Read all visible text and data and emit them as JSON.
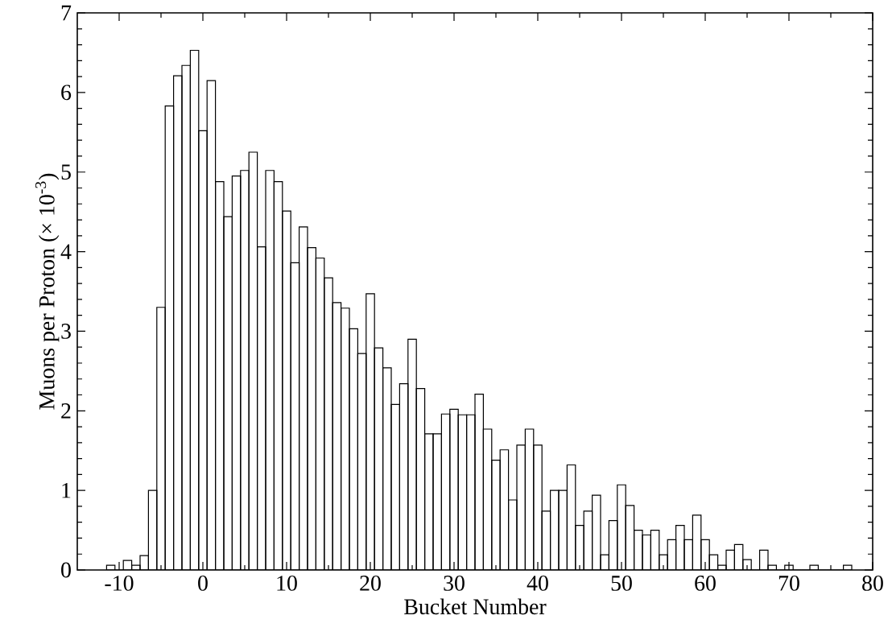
{
  "chart_data": {
    "type": "histogram",
    "xlabel": "Bucket Number",
    "ylabel": "Muons per Proton (× 10$^{-3}$)",
    "bins": [
      -11.5,
      -10.5,
      -9.5,
      -8.5,
      -7.5,
      -6.5,
      -5.5,
      -4.5,
      -3.5,
      -2.5,
      -1.5,
      -0.5,
      0.5,
      1.5,
      2.5,
      3.5,
      4.5,
      5.5,
      6.5,
      7.5,
      8.5,
      9.5,
      10.5,
      11.5,
      12.5,
      13.5,
      14.5,
      15.5,
      16.5,
      17.5,
      18.5,
      19.5,
      20.5,
      21.5,
      22.5,
      23.5,
      24.5,
      25.5,
      26.5,
      27.5,
      28.5,
      29.5,
      30.5,
      31.5,
      32.5,
      33.5,
      34.5,
      35.5,
      36.5,
      37.5,
      38.5,
      39.5,
      40.5,
      41.5,
      42.5,
      43.5,
      44.5,
      45.5,
      46.5,
      47.5,
      48.5,
      49.5,
      50.5,
      51.5,
      52.5,
      53.5,
      54.5,
      55.5,
      56.5,
      57.5,
      58.5,
      59.5,
      60.5,
      61.5,
      62.5,
      63.5,
      64.5,
      65.5,
      66.5,
      67.5,
      68.5,
      69.5,
      70.5,
      71.5,
      72.5,
      73.5,
      74.5,
      75.5,
      76.5,
      77.5
    ],
    "values": [
      0.06,
      0,
      0.12,
      0.06,
      0.18,
      1.0,
      3.3,
      5.83,
      6.21,
      6.34,
      6.53,
      5.52,
      6.15,
      4.88,
      4.44,
      4.95,
      5.02,
      5.25,
      4.06,
      5.02,
      4.88,
      4.51,
      3.86,
      4.31,
      4.05,
      3.92,
      3.67,
      3.36,
      3.29,
      3.03,
      2.72,
      3.47,
      2.79,
      2.54,
      2.08,
      2.34,
      2.9,
      2.28,
      1.71,
      1.71,
      1.96,
      2.02,
      1.95,
      1.95,
      2.21,
      1.77,
      1.38,
      1.51,
      0.88,
      1.57,
      1.77,
      1.57,
      0.74,
      1.0,
      1.0,
      1.32,
      0.56,
      0.74,
      0.94,
      0.19,
      0.62,
      1.07,
      0.81,
      0.5,
      0.44,
      0.5,
      0.19,
      0.38,
      0.56,
      0.38,
      0.69,
      0.38,
      0.19,
      0.06,
      0.25,
      0.32,
      0.13,
      0,
      0.25,
      0.06,
      0,
      0.06,
      0,
      0,
      0.06,
      0,
      0,
      0,
      0.06
    ],
    "color": "#000000",
    "xlim": [
      -15,
      80
    ],
    "xticks": [
      -10,
      0,
      10,
      20,
      30,
      40,
      50,
      60,
      70,
      80
    ],
    "ylim": [
      0,
      7
    ],
    "yticks": [
      0,
      1,
      2,
      3,
      4,
      5,
      6,
      7
    ]
  }
}
